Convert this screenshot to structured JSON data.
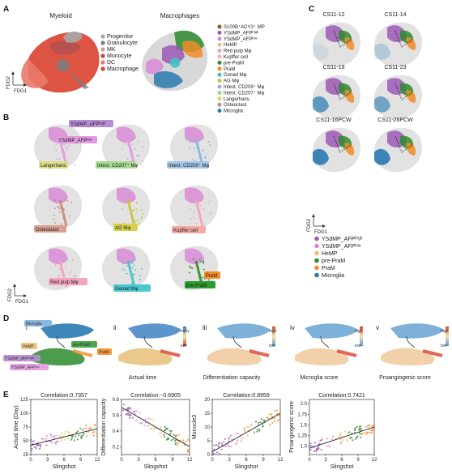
{
  "panel_a": {
    "letter": "A",
    "myeloid_title": "Myeloid",
    "macro_title": "Macrophages",
    "axis_y": "FDG2",
    "axis_x": "FDG1",
    "myeloid_legend": [
      {
        "label": "Progenitor",
        "color": "#a9a9a9"
      },
      {
        "label": "Granulocyte",
        "color": "#7d7d7d"
      },
      {
        "label": "MK",
        "color": "#c99a9a"
      },
      {
        "label": "Monocyte",
        "color": "#b05050"
      },
      {
        "label": "DC",
        "color": "#e97a6a"
      },
      {
        "label": "Macrophage",
        "color": "#d9412f"
      }
    ],
    "macro_legend": [
      {
        "label": "S100B⁺ACY3⁺ MP",
        "color": "#8b5a2b"
      },
      {
        "label": "YSdMP_AFPʰⁱᵍʰ",
        "color": "#9b59b6"
      },
      {
        "label": "YSdMP_AFPˡᵒʷ",
        "color": "#d98ad6"
      },
      {
        "label": "HeMP",
        "color": "#e8c07a"
      },
      {
        "label": "Red pulp Mφ",
        "color": "#f3a3b8"
      },
      {
        "label": "Kupffer cell",
        "color": "#f6b0a8"
      },
      {
        "label": "pre-PraM",
        "color": "#2e8b2e"
      },
      {
        "label": "PraM",
        "color": "#f28c28"
      },
      {
        "label": "Gonad Mφ",
        "color": "#3fc1c9"
      },
      {
        "label": "AG Mφ",
        "color": "#c7c23a"
      },
      {
        "label": "Intest. CD209⁺ Mφ",
        "color": "#8ab4e0"
      },
      {
        "label": "Intest. CD207⁺ Mφ",
        "color": "#9bd48a"
      },
      {
        "label": "Langerhans",
        "color": "#d4d47a"
      },
      {
        "label": "Osteoclast",
        "color": "#c98a7a"
      },
      {
        "label": "Microglia",
        "color": "#2a7ab0"
      }
    ]
  },
  "panel_b": {
    "letter": "B",
    "labels": [
      {
        "text": "YSdMP_AFPʰⁱᵍʰ",
        "color": "#b98bd6"
      },
      {
        "text": "YSdMP_AFPˡᵒʷ",
        "color": "#e39ae0"
      },
      {
        "text": "Langerhans",
        "color": "#dedd8a"
      },
      {
        "text": "Intest. CD207⁺ Mφ",
        "color": "#a7dc92"
      },
      {
        "text": "Intest. CD209⁺ Mφ",
        "color": "#a6c6ea"
      },
      {
        "text": "Osteoclast",
        "color": "#d8a08f"
      },
      {
        "text": "AG Mφ",
        "color": "#d6d04a"
      },
      {
        "text": "Kupffer cell",
        "color": "#f5aaa3"
      },
      {
        "text": "Red pulp Mφ",
        "color": "#f4a6be"
      },
      {
        "text": "Gonad Mφ",
        "color": "#4cc8d0"
      },
      {
        "text": "PraM",
        "color": "#f28c28"
      },
      {
        "text": "pre-PraM",
        "color": "#2e9b2e"
      }
    ],
    "axis_y": "FDG2",
    "axis_x": "FDG1"
  },
  "panel_c": {
    "letter": "C",
    "titles": [
      "CS11-12",
      "CS11-14",
      "CS11-19",
      "CS11-23",
      "CS11-16PCW",
      "CS11-26PCW"
    ],
    "axis_y": "FDG2",
    "axis_x": "FDG1",
    "legend": [
      {
        "label": "YSdMP_AFPʰⁱᵍʰ",
        "color": "#9b59b6"
      },
      {
        "label": "YSdMP_AFPˡᵒʷ",
        "color": "#d98ad6"
      },
      {
        "label": "HeMP",
        "color": "#e8c07a"
      },
      {
        "label": "pre-PraM",
        "color": "#2e8b2e"
      },
      {
        "label": "PraM",
        "color": "#f28c28"
      },
      {
        "label": "Microglia",
        "color": "#2a7ab0"
      }
    ]
  },
  "panel_d": {
    "letter": "D",
    "romans": [
      "i",
      "ii",
      "iii",
      "iv",
      "v"
    ],
    "i_labels": [
      {
        "text": "Microglia",
        "color": "#7fb2dc"
      },
      {
        "text": "pre-PraM",
        "color": "#3a9a3a"
      },
      {
        "text": "HeMP",
        "color": "#e8c07a"
      },
      {
        "text": "PraM",
        "color": "#f28c28"
      },
      {
        "text": "YSdMP_AFPʰⁱᵍʰ",
        "color": "#b98bd6"
      },
      {
        "text": "YSdMP_AFPˡᵒʷ",
        "color": "#e39ae0"
      }
    ],
    "subtitles": [
      "Actual time",
      "Differentiation capacity",
      "Microglia score",
      "Proangiogenic score"
    ],
    "legend_ii": [
      "early",
      "late"
    ],
    "legend_hl": [
      "high",
      "low"
    ]
  },
  "panel_e": {
    "letter": "E",
    "xlabel": "Slingshot"
  },
  "chart_data": [
    {
      "type": "scatter",
      "title": "Correlation:0.7357",
      "xlabel": "Slingshot",
      "ylabel": "Actual time (Day)",
      "xlim": [
        0,
        12
      ],
      "ylim": [
        25,
        125
      ],
      "xticks": [
        "0",
        "3",
        "6",
        "9",
        "12"
      ],
      "yticks": [
        "25",
        "50",
        "75",
        "100",
        "125"
      ],
      "trend": {
        "x": [
          0,
          12
        ],
        "y": [
          42,
          72
        ]
      }
    },
    {
      "type": "scatter",
      "title": "Correlation:−0.6905",
      "xlabel": "Slingshot",
      "ylabel": "Differentiation capacity",
      "xlim": [
        0,
        12
      ],
      "ylim": [
        0.1,
        0.8
      ],
      "xticks": [
        "0",
        "3",
        "6",
        "9",
        "12"
      ],
      "yticks": [
        "0.2",
        "0.4",
        "0.6",
        "0.8"
      ],
      "trend": {
        "x": [
          0,
          12
        ],
        "y": [
          0.7,
          0.2
        ]
      }
    },
    {
      "type": "scatter",
      "title": "Correlation:0.8959",
      "xlabel": "Slingshot",
      "ylabel": "Monocle3",
      "xlim": [
        0,
        12
      ],
      "ylim": [
        0,
        20
      ],
      "xticks": [
        "0",
        "3",
        "6",
        "9",
        "12"
      ],
      "yticks": [
        "0",
        "5",
        "10",
        "15",
        "20"
      ],
      "trend": {
        "x": [
          0,
          12
        ],
        "y": [
          1,
          15
        ]
      }
    },
    {
      "type": "scatter",
      "title": "Correlation:0.7421",
      "xlabel": "Slingshot",
      "ylabel": "Proangiogenic score",
      "xlim": [
        0,
        12
      ],
      "ylim": [
        0.8,
        2.1
      ],
      "xticks": [
        "0",
        "3",
        "6",
        "9",
        "12"
      ],
      "yticks": [
        "1.0",
        "1.25",
        "1.5",
        "1.75",
        "2.0"
      ],
      "trend": {
        "x": [
          0,
          12
        ],
        "y": [
          0.95,
          1.45
        ]
      }
    }
  ]
}
